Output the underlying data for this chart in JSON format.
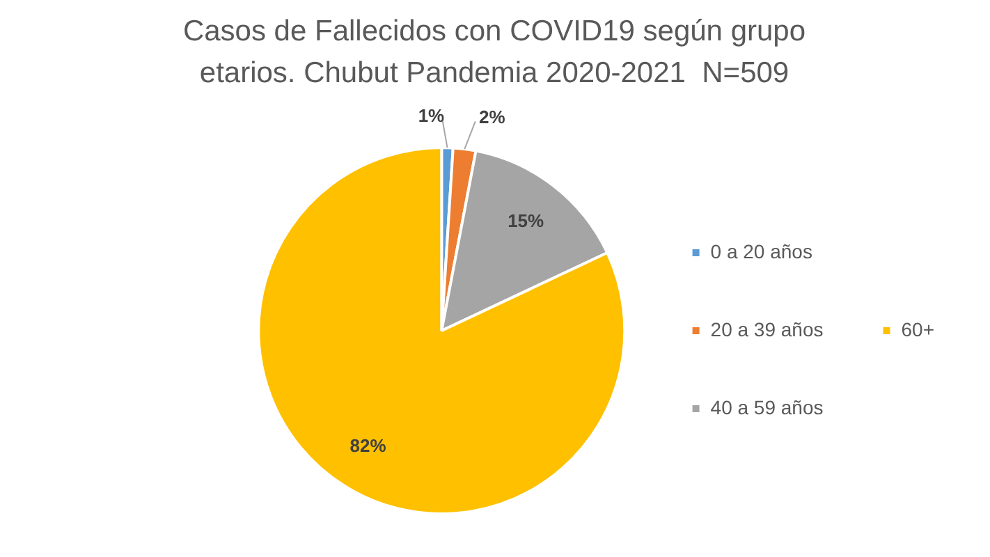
{
  "chart_data": {
    "type": "pie",
    "title": "Casos de Fallecidos con COVID19 según grupo etarios. Chubut Pandemia 2020-2021  N=509",
    "categories": [
      "0 a 20 años",
      "20 a 39 años",
      "40 a 59 años",
      "60+"
    ],
    "values": [
      1,
      2,
      15,
      82
    ],
    "colors": [
      "#5b9bd5",
      "#ed7d31",
      "#a5a5a5",
      "#ffc000"
    ],
    "value_labels": [
      "1%",
      "2%",
      "15%",
      "82%"
    ],
    "legend": "right"
  }
}
